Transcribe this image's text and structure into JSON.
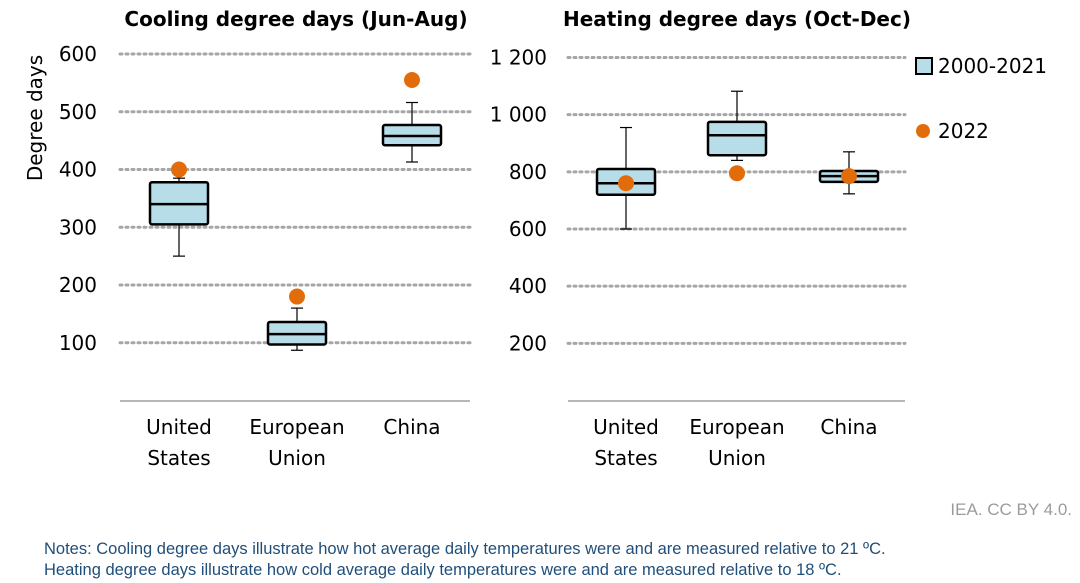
{
  "chart_data": [
    {
      "type": "box",
      "title": "Cooling degree days (Jun-Aug)",
      "ylabel": "Degree days",
      "ylim": [
        0,
        600
      ],
      "yticks": [
        100,
        200,
        300,
        400,
        500,
        600
      ],
      "ytick_labels": [
        "100",
        "200",
        "300",
        "400",
        "500",
        "600"
      ],
      "grid": true,
      "categories": [
        [
          "United",
          "States"
        ],
        [
          "European",
          "Union"
        ],
        [
          "China"
        ]
      ],
      "series": [
        {
          "name": "2000-2021",
          "color": "#b7dde8",
          "boxes": [
            {
              "min": 250,
              "q1": 305,
              "median": 340,
              "q3": 378,
              "max": 385
            },
            {
              "min": 87,
              "q1": 97,
              "median": 115,
              "q3": 136,
              "max": 160
            },
            {
              "min": 413,
              "q1": 442,
              "median": 458,
              "q3": 477,
              "max": 516
            }
          ]
        },
        {
          "name": "2022",
          "color": "#e36c0a",
          "values": [
            400,
            180,
            555
          ]
        }
      ]
    },
    {
      "type": "box",
      "title": "Heating degree days (Oct-Dec)",
      "ylabel": "",
      "ylim": [
        0,
        1200
      ],
      "yticks": [
        200,
        400,
        600,
        800,
        1000,
        1200
      ],
      "ytick_labels": [
        "200",
        "400",
        "600",
        "800",
        "1 000",
        "1 200"
      ],
      "grid": true,
      "categories": [
        [
          "United",
          "States"
        ],
        [
          "European",
          "Union"
        ],
        [
          "China"
        ]
      ],
      "series": [
        {
          "name": "2000-2021",
          "color": "#b7dde8",
          "boxes": [
            {
              "min": 600,
              "q1": 720,
              "median": 760,
              "q3": 810,
              "max": 955
            },
            {
              "min": 840,
              "q1": 858,
              "median": 928,
              "q3": 975,
              "max": 1082
            },
            {
              "min": 723,
              "q1": 765,
              "median": 785,
              "q3": 803,
              "max": 870
            }
          ]
        },
        {
          "name": "2022",
          "color": "#e36c0a",
          "values": [
            760,
            795,
            785
          ]
        }
      ]
    }
  ],
  "legend": [
    {
      "label": "2000-2021",
      "kind": "box",
      "color": "#b7dde8"
    },
    {
      "label": "2022",
      "kind": "dot",
      "color": "#e36c0a"
    }
  ],
  "credit": "IEA. CC BY 4.0.",
  "notes": [
    "Notes: Cooling degree days illustrate how hot average daily temperatures were and are measured relative to 21 ºC.",
    "Heating degree days illustrate how cold average daily temperatures were and are measured relative to 18 ºC."
  ]
}
